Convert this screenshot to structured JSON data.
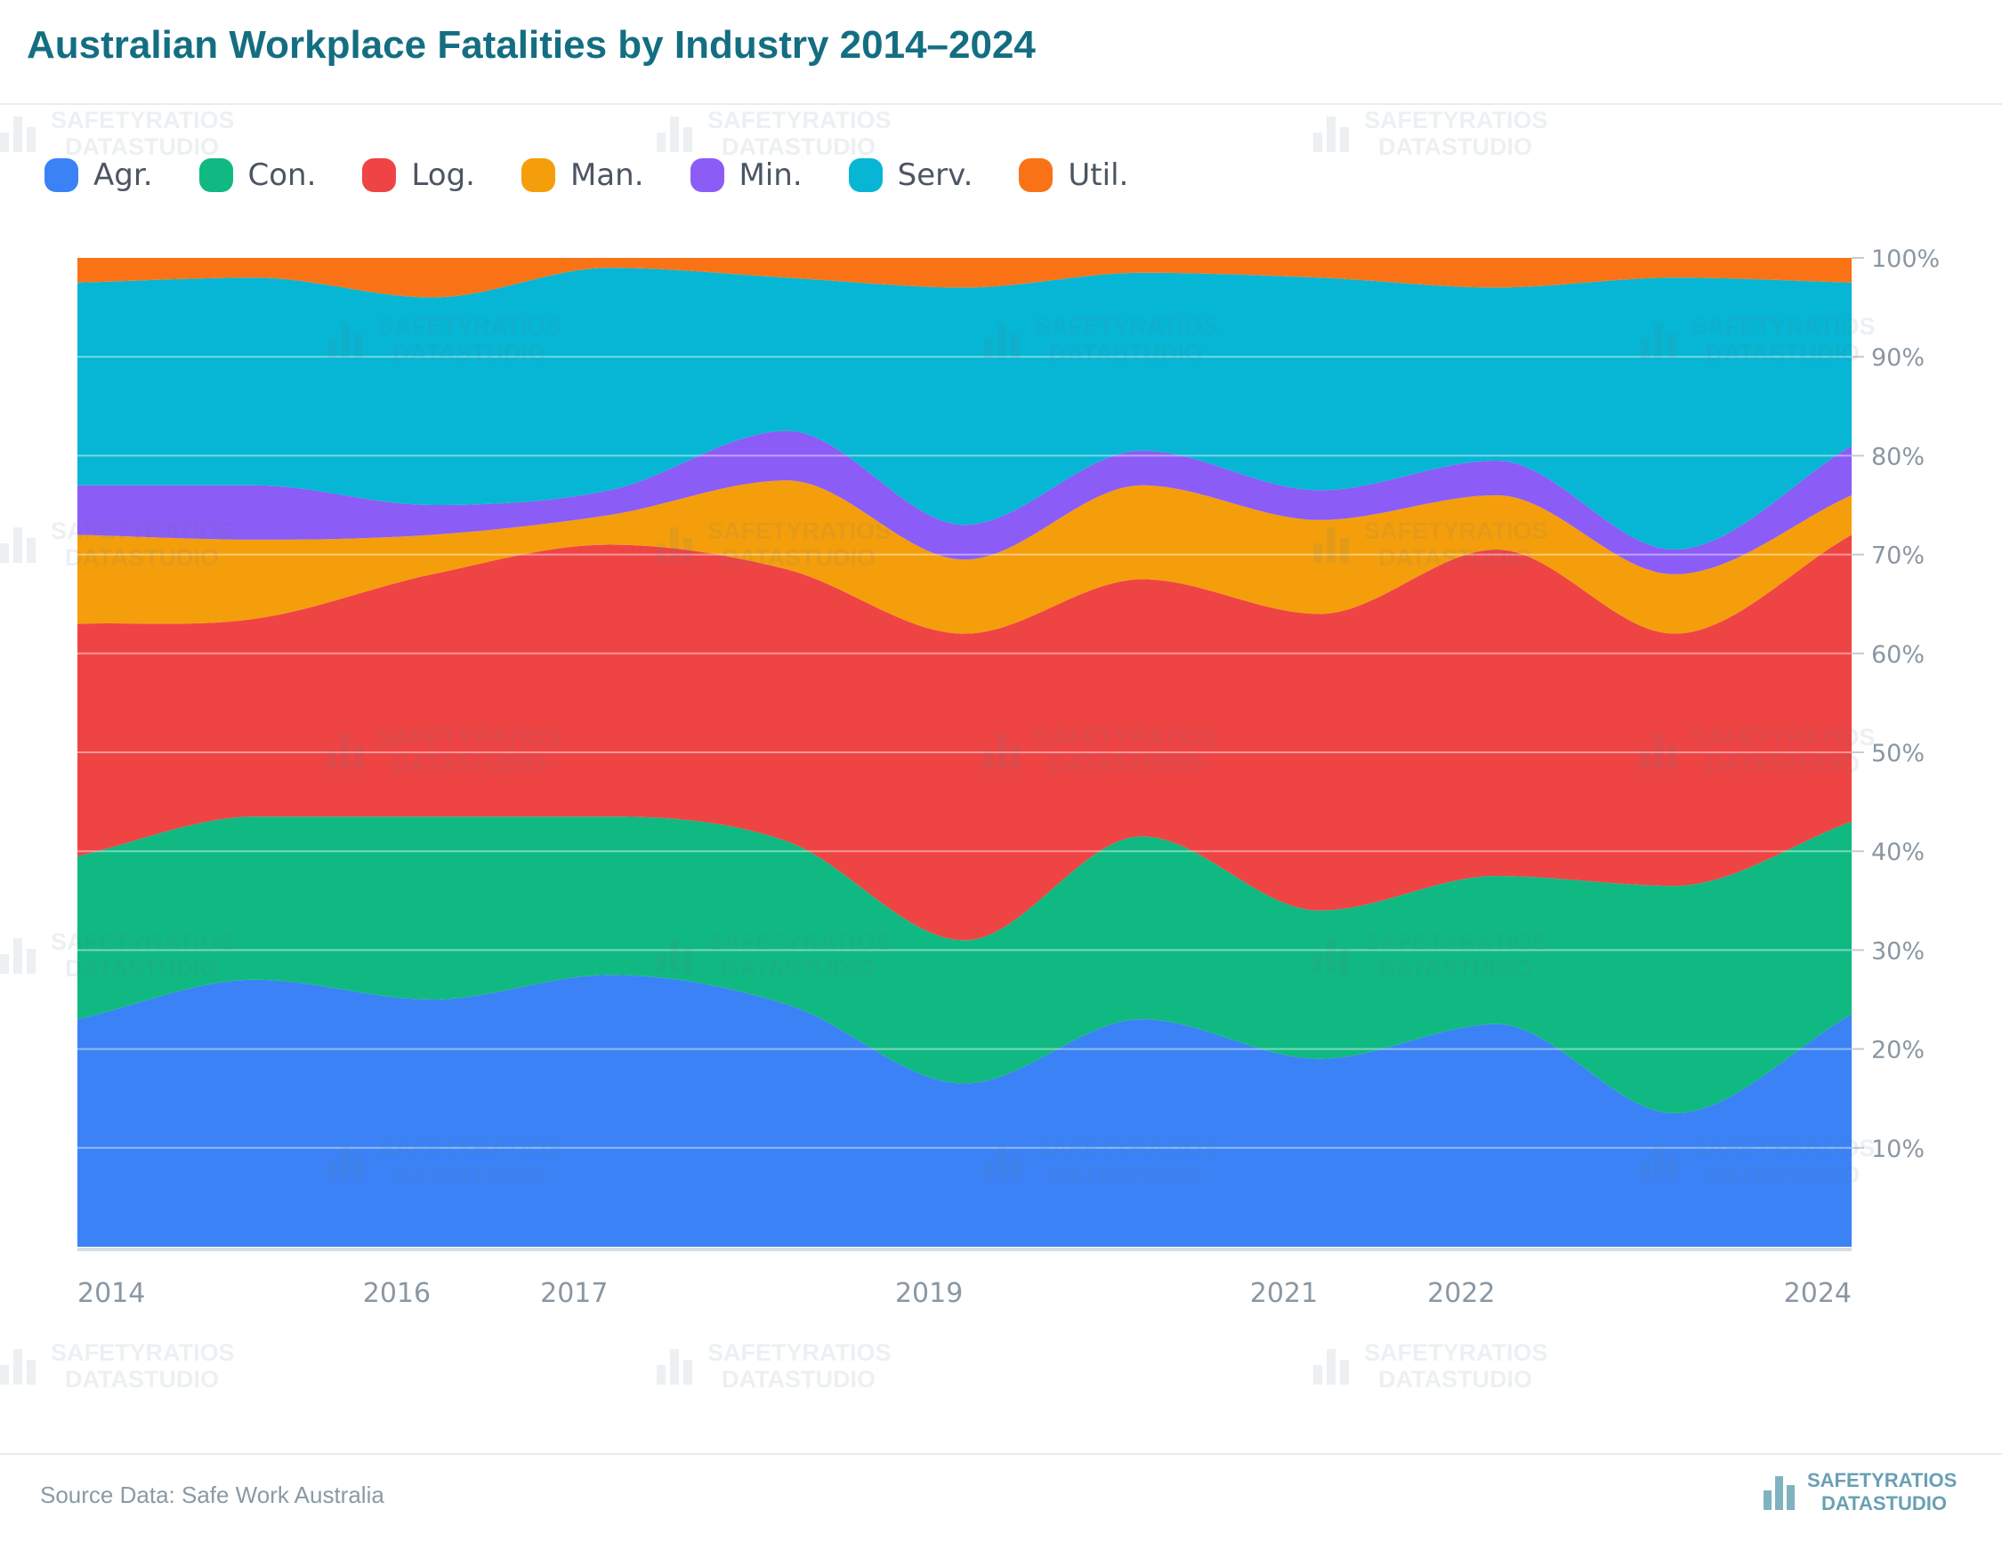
{
  "header": {
    "title": "Australian Workplace Fatalities by Industry 2014–2024"
  },
  "footer": {
    "source": "Source Data: Safe Work Australia",
    "brand_line1": "SAFETYRATIOS",
    "brand_line2": "DATASTUDIO"
  },
  "watermark": {
    "line1": "SAFETYRATIOS",
    "line2": "DATASTUDIO"
  },
  "chart_data": {
    "type": "area",
    "stacked": true,
    "normalized": true,
    "title": "Australian Workplace Fatalities by Industry 2014–2024",
    "xlabel": "",
    "ylabel": "",
    "x": [
      2014,
      2015,
      2016,
      2017,
      2018,
      2019,
      2020,
      2021,
      2022,
      2023,
      2024
    ],
    "xticks": [
      "2014",
      "2016",
      "2017",
      "2019",
      "2021",
      "2022",
      "2024"
    ],
    "xtick_values": [
      2014,
      2015.8,
      2016.8,
      2018.8,
      2020.8,
      2021.8,
      2024
    ],
    "ylim": [
      0,
      100
    ],
    "yticks": [
      "10%",
      "20%",
      "30%",
      "40%",
      "50%",
      "60%",
      "70%",
      "80%",
      "90%",
      "100%"
    ],
    "ytick_values": [
      10,
      20,
      30,
      40,
      50,
      60,
      70,
      80,
      90,
      100
    ],
    "grid": true,
    "legend_position": "top-left",
    "series": [
      {
        "name": "Agr.",
        "color": "#3b82f6",
        "values": [
          23.0,
          27.0,
          25.0,
          27.5,
          24.5,
          16.5,
          23.0,
          19.0,
          22.5,
          13.5,
          23.5
        ]
      },
      {
        "name": "Con.",
        "color": "#10b981",
        "values": [
          16.5,
          16.5,
          18.5,
          16.0,
          16.5,
          14.5,
          18.5,
          15.0,
          15.0,
          23.0,
          19.5
        ]
      },
      {
        "name": "Log.",
        "color": "#ef4444",
        "values": [
          23.5,
          20.0,
          24.5,
          27.5,
          27.5,
          31.0,
          26.0,
          30.0,
          33.0,
          25.5,
          29.0
        ]
      },
      {
        "name": "Man.",
        "color": "#f59e0b",
        "values": [
          9.0,
          8.0,
          4.0,
          3.0,
          9.0,
          7.5,
          9.5,
          9.5,
          5.5,
          6.0,
          4.0
        ]
      },
      {
        "name": "Min.",
        "color": "#8b5cf6",
        "values": [
          5.0,
          5.5,
          3.0,
          2.5,
          5.0,
          3.5,
          3.5,
          3.0,
          3.5,
          2.5,
          5.0
        ]
      },
      {
        "name": "Serv.",
        "color": "#06b6d4",
        "values": [
          20.5,
          21.0,
          21.0,
          22.5,
          15.5,
          24.0,
          18.0,
          21.5,
          17.5,
          27.5,
          16.5
        ]
      },
      {
        "name": "Util.",
        "color": "#f97316",
        "values": [
          2.5,
          2.0,
          4.0,
          1.0,
          2.0,
          3.0,
          1.5,
          2.0,
          3.0,
          2.0,
          2.5
        ]
      }
    ]
  }
}
